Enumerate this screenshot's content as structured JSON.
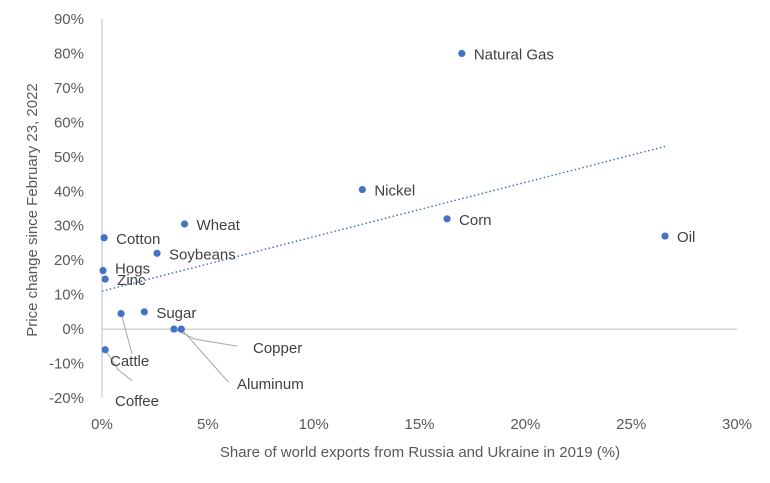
{
  "chart_data": {
    "type": "scatter",
    "xlabel": "Share of world exports from Russia and Ukraine in 2019 (%)",
    "ylabel": "Price change since February 23, 2022",
    "xlim": [
      0,
      30
    ],
    "ylim": [
      -20,
      90
    ],
    "x_ticks": [
      "0%",
      "5%",
      "10%",
      "15%",
      "20%",
      "25%",
      "30%"
    ],
    "y_ticks": [
      "-20%",
      "-10%",
      "0%",
      "10%",
      "20%",
      "30%",
      "40%",
      "50%",
      "60%",
      "70%",
      "80%",
      "90%"
    ],
    "grid": false,
    "legend": "none",
    "marker_color": "#4472C4",
    "trendline": {
      "style": "dotted",
      "color": "#4472C4",
      "x": [
        0,
        26.6
      ],
      "y": [
        11,
        53
      ]
    },
    "points": [
      {
        "label": "Natural Gas",
        "x": 17.0,
        "y": 80
      },
      {
        "label": "Nickel",
        "x": 12.3,
        "y": 40.5
      },
      {
        "label": "Corn",
        "x": 16.3,
        "y": 32
      },
      {
        "label": "Oil",
        "x": 26.6,
        "y": 27
      },
      {
        "label": "Wheat",
        "x": 3.9,
        "y": 30.5
      },
      {
        "label": "Cotton",
        "x": 0.1,
        "y": 26.5
      },
      {
        "label": "Soybeans",
        "x": 2.6,
        "y": 22
      },
      {
        "label": "Hogs",
        "x": 0.05,
        "y": 17
      },
      {
        "label": "Zinc",
        "x": 0.15,
        "y": 14.5
      },
      {
        "label": "Sugar",
        "x": 2.0,
        "y": 5
      },
      {
        "label": "Cattle",
        "x": 0.9,
        "y": 4.5
      },
      {
        "label": "Copper",
        "x": 3.4,
        "y": 0
      },
      {
        "label": "Aluminum",
        "x": 3.75,
        "y": 0
      },
      {
        "label": "Coffee",
        "x": 0.15,
        "y": -6
      }
    ]
  }
}
